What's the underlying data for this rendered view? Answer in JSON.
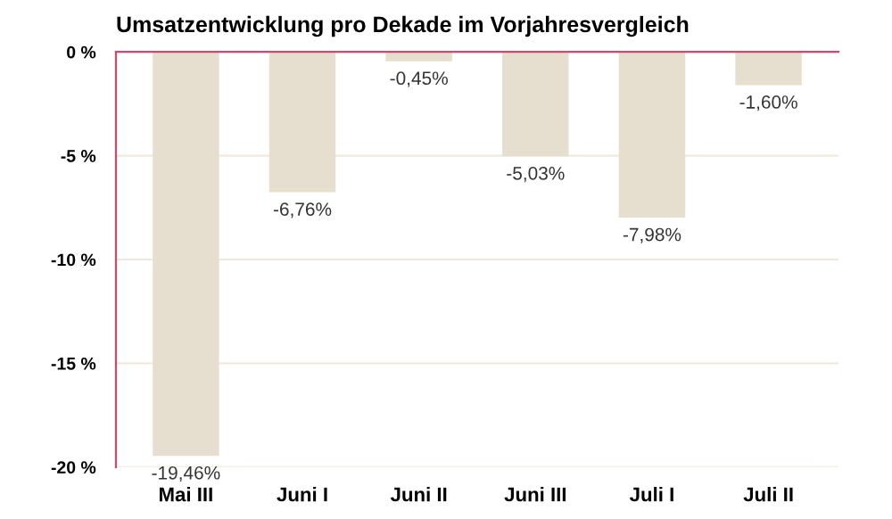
{
  "chart_data": {
    "type": "bar",
    "title": "Umsatzentwicklung pro Dekade im Vorjahresvergleich",
    "categories": [
      "Mai III",
      "Juni I",
      "Juni II",
      "Juni III",
      "Juli I",
      "Juli II"
    ],
    "values": [
      -19.46,
      -6.76,
      -0.45,
      -5.03,
      -7.98,
      -1.6
    ],
    "value_labels": [
      "-19,46%",
      "-6,76%",
      "-0,45%",
      "-5,03%",
      "-7,98%",
      "-1,60%"
    ],
    "color": "#e6dfd0",
    "ylim": [
      -20,
      0
    ],
    "yticks": [
      {
        "value": 0,
        "label": "0 %"
      },
      {
        "value": -5,
        "label": "-5 %"
      },
      {
        "value": -10,
        "label": "-10 %"
      },
      {
        "value": -15,
        "label": "-15 %"
      },
      {
        "value": -20,
        "label": "-20 %"
      }
    ],
    "grid": "y"
  }
}
